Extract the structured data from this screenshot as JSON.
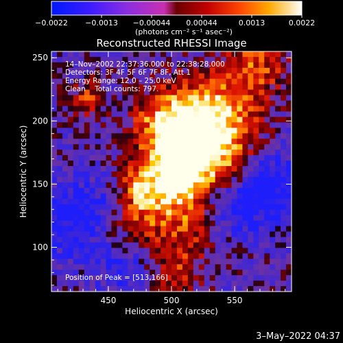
{
  "colorbar": {
    "tick_labels": [
      "−0.0022",
      "−0.0013",
      "−0.00044",
      "0.00044",
      "0.0013",
      "0.0022"
    ],
    "units": "(photons cm⁻² s⁻¹ asec⁻²)"
  },
  "title": "Reconstructed RHESSI Image",
  "annotations": {
    "time_range": "14–Nov–2002 22:37:36.000 to 22:38:28.000",
    "detectors": "Detectors: 3F 4F 5F 6F 7F 8F, Att 1",
    "energy": "Energy Range: 12.0 – 25.0 keV",
    "clean": "Clean    Total counts: 797.",
    "peak": "Position of Peak = [513,166]"
  },
  "axes": {
    "xlabel": "Heliocentric X (arcsec)",
    "ylabel": "Heliocentric Y (arcsec)",
    "x_ticks": [
      "450",
      "500",
      "550"
    ],
    "y_ticks": [
      "100",
      "150",
      "200",
      "250"
    ]
  },
  "footer_date": "3–May–2022 04:37"
}
